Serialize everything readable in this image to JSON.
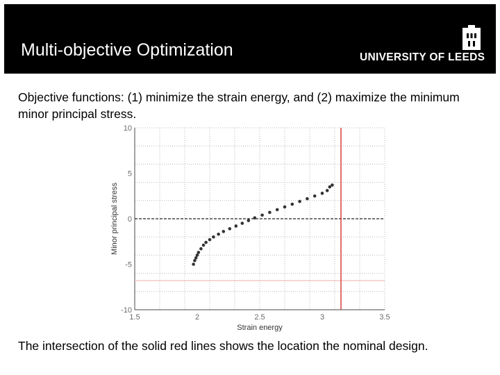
{
  "header": {
    "title": "Multi-objective Optimization",
    "logo_text": "UNIVERSITY OF LEEDS"
  },
  "intro_text": "Objective functions: (1) minimize the strain energy, and (2) maximize the minimum minor principal stress.",
  "caption_text": "The intersection of the solid red lines shows the location the nominal design.",
  "colors": {
    "header_bg": "#000000",
    "red_line": "#d23232",
    "light_red_line": "#f0b4b4",
    "points": "#333333"
  },
  "chart_data": {
    "type": "scatter",
    "xlabel": "Strain energy",
    "ylabel": "Minor principal stress",
    "xlim": [
      1.5,
      3.5
    ],
    "ylim": [
      -10,
      10
    ],
    "x_ticks": [
      "1.5",
      "2",
      "2.5",
      "3",
      "3.5"
    ],
    "y_ticks": [
      "10",
      "5",
      "0",
      "-5",
      "-10"
    ],
    "grid": true,
    "reference_lines": {
      "y_zero_dashed": 0,
      "nominal_strain_energy": 3.15,
      "nominal_stress_light": -6.8
    },
    "series": [
      {
        "points": [
          [
            1.97,
            -5.0
          ],
          [
            1.98,
            -4.6
          ],
          [
            1.99,
            -4.3
          ],
          [
            2.0,
            -4.0
          ],
          [
            2.01,
            -3.7
          ],
          [
            2.03,
            -3.3
          ],
          [
            2.05,
            -2.9
          ],
          [
            2.07,
            -2.6
          ],
          [
            2.1,
            -2.3
          ],
          [
            2.13,
            -2.0
          ],
          [
            2.17,
            -1.7
          ],
          [
            2.21,
            -1.4
          ],
          [
            2.26,
            -1.1
          ],
          [
            2.31,
            -0.8
          ],
          [
            2.36,
            -0.5
          ],
          [
            2.41,
            -0.2
          ],
          [
            2.46,
            0.1
          ],
          [
            2.52,
            0.4
          ],
          [
            2.58,
            0.7
          ],
          [
            2.64,
            1.0
          ],
          [
            2.7,
            1.3
          ],
          [
            2.76,
            1.6
          ],
          [
            2.82,
            1.9
          ],
          [
            2.88,
            2.2
          ],
          [
            2.94,
            2.5
          ],
          [
            3.0,
            2.8
          ],
          [
            3.04,
            3.1
          ],
          [
            3.06,
            3.5
          ],
          [
            3.08,
            3.7
          ]
        ]
      }
    ]
  }
}
